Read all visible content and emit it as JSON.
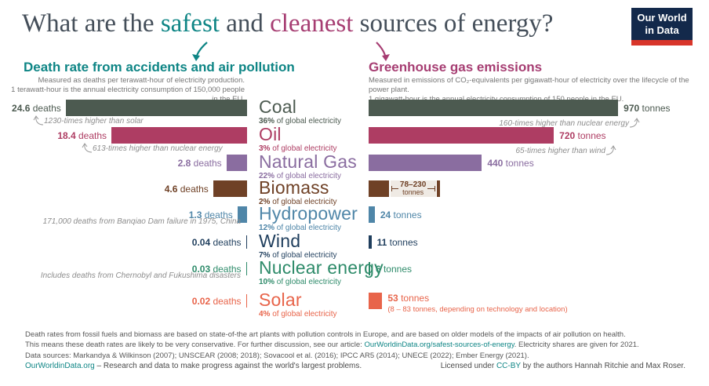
{
  "title": {
    "pre": "What are the ",
    "safest": "safest",
    "and": " and ",
    "cleanest": "cleanest",
    "post": " sources of energy?"
  },
  "logo": {
    "line1": "Our World",
    "line2": "in Data"
  },
  "colors": {
    "teal": "#0e8585",
    "magenta": "#a63d72",
    "link": "#0e8585",
    "annotation": "#8d8d8d"
  },
  "left_chart": {
    "heading": "Death rate from accidents and air pollution",
    "sub1": "Measured as deaths per terawatt-hour of electricity production.",
    "sub2": "1 terawatt-hour is the annual electricity consumption of 150,000 people in the EU."
  },
  "right_chart": {
    "heading": "Greenhouse gas emissions",
    "sub1": "Measured in emissions of CO₂-equivalents per gigawatt-hour of electricity over the lifecycle of the power plant.",
    "sub2": "1 gigawatt-hour is the annual electricity consumption of 150 people in the EU."
  },
  "labels": {
    "deaths_unit": " deaths",
    "tonnes_unit": " tonnes",
    "share_suffix": " of global electricity"
  },
  "rows": [
    {
      "name": "Coal",
      "share_pct": "36%",
      "color": "#4c5a50",
      "deaths": 24.6,
      "deaths_label": "24.6",
      "tonnes": 970,
      "tonnes_label": "970"
    },
    {
      "name": "Oil",
      "share_pct": "3%",
      "color": "#ae3d63",
      "deaths": 18.4,
      "deaths_label": "18.4",
      "tonnes": 720,
      "tonnes_label": "720"
    },
    {
      "name": "Natural Gas",
      "share_pct": "22%",
      "color": "#8a6da0",
      "deaths": 2.8,
      "deaths_label": "2.8",
      "tonnes": 440,
      "tonnes_label": "440"
    },
    {
      "name": "Biomass",
      "share_pct": "2%",
      "color": "#6f4126",
      "deaths": 4.6,
      "deaths_label": "4.6",
      "tonnes": 78,
      "tonnes_label": "78"
    },
    {
      "name": "Hydropower",
      "share_pct": "12%",
      "color": "#4f86a8",
      "deaths": 1.3,
      "deaths_label": "1.3",
      "tonnes": 24,
      "tonnes_label": "24"
    },
    {
      "name": "Wind",
      "share_pct": "7%",
      "color": "#1f3e5d",
      "deaths": 0.04,
      "deaths_label": "0.04",
      "tonnes": 11,
      "tonnes_label": "11"
    },
    {
      "name": "Nuclear energy",
      "share_pct": "10%",
      "color": "#2e8b6a",
      "deaths": 0.03,
      "deaths_label": "0.03",
      "tonnes": 6,
      "tonnes_label": "6"
    },
    {
      "name": "Solar",
      "share_pct": "4%",
      "color": "#e8644a",
      "deaths": 0.02,
      "deaths_label": "0.02",
      "tonnes": 53,
      "tonnes_label": "53"
    }
  ],
  "annotations": {
    "coal_left": "1230-times higher than solar",
    "oil_left": "613-times higher than nuclear energy",
    "hydro_left": "171,000 deaths from Banqiao Dam failure in 1975, China",
    "nuclear_left": "Includes deaths from Chernobyl and Fukushima disasters",
    "coal_right": "160-times higher than nuclear energy",
    "oil_right": "65-times higher than wind",
    "solar_right": "(8 – 83 tonnes, depending on technology and location)",
    "biomass_range": "78–230",
    "biomass_range_unit": "tonnes"
  },
  "footer": {
    "line1": "Death rates from fossil fuels and biomass are based on state-of-the art plants with pollution controls in Europe, and are based on older models of the impacts of air pollution on health.",
    "line2_pre": "This means these death rates are likely to be very conservative. For further discussion, see our article: ",
    "line2_link": "OurWorldinData.org/safest-sources-of-energy",
    "line2_post": ". Electricity shares are given for 2021.",
    "line3": "Data sources: Markandya & Wilkinson (2007); UNSCEAR (2008; 2018); Sovacool et al. (2016); IPCC AR5 (2014); UNECE (2022); Ember Energy (2021).",
    "bottom_left_link": "OurWorldinData.org",
    "bottom_left_rest": " – Research and data to make progress against the world's largest problems.",
    "bottom_right_pre": "Licensed under ",
    "bottom_right_link": "CC-BY",
    "bottom_right_post": " by the authors Hannah Ritchie and Max Roser."
  },
  "chart_data": [
    {
      "type": "bar",
      "orientation": "horizontal",
      "direction": "right-to-left",
      "title": "Death rate from accidents and air pollution",
      "subtitle": "Measured as deaths per terawatt-hour of electricity production.",
      "note": "1 terawatt-hour is the annual electricity consumption of 150,000 people in the EU.",
      "unit": "deaths per terawatt-hour",
      "categories": [
        "Coal",
        "Oil",
        "Natural Gas",
        "Biomass",
        "Hydropower",
        "Wind",
        "Nuclear energy",
        "Solar"
      ],
      "values": [
        24.6,
        18.4,
        2.8,
        4.6,
        1.3,
        0.04,
        0.03,
        0.02
      ],
      "share_of_global_electricity": [
        "36%",
        "3%",
        "22%",
        "2%",
        "12%",
        "7%",
        "10%",
        "4%"
      ],
      "annotations": [
        "1230-times higher than solar",
        "613-times higher than nuclear energy",
        "171,000 deaths from Banqiao Dam failure in 1975, China",
        "Includes deaths from Chernobyl and Fukushima disasters"
      ]
    },
    {
      "type": "bar",
      "orientation": "horizontal",
      "direction": "left-to-right",
      "title": "Greenhouse gas emissions",
      "subtitle": "Measured in emissions of CO₂-equivalents per gigawatt-hour of electricity over the lifecycle of the power plant.",
      "note": "1 gigawatt-hour is the annual electricity consumption of 150 people in the EU.",
      "unit": "tonnes CO₂-equivalents per gigawatt-hour",
      "categories": [
        "Coal",
        "Oil",
        "Natural Gas",
        "Biomass",
        "Hydropower",
        "Wind",
        "Nuclear energy",
        "Solar"
      ],
      "values": [
        970,
        720,
        440,
        78,
        24,
        11,
        6,
        53
      ],
      "ranges": {
        "Biomass": [
          78,
          230
        ],
        "Solar": [
          8,
          83
        ]
      },
      "annotations": [
        "160-times higher than nuclear energy",
        "65-times higher than wind",
        "(8 – 83 tonnes, depending on technology and location)"
      ]
    }
  ]
}
